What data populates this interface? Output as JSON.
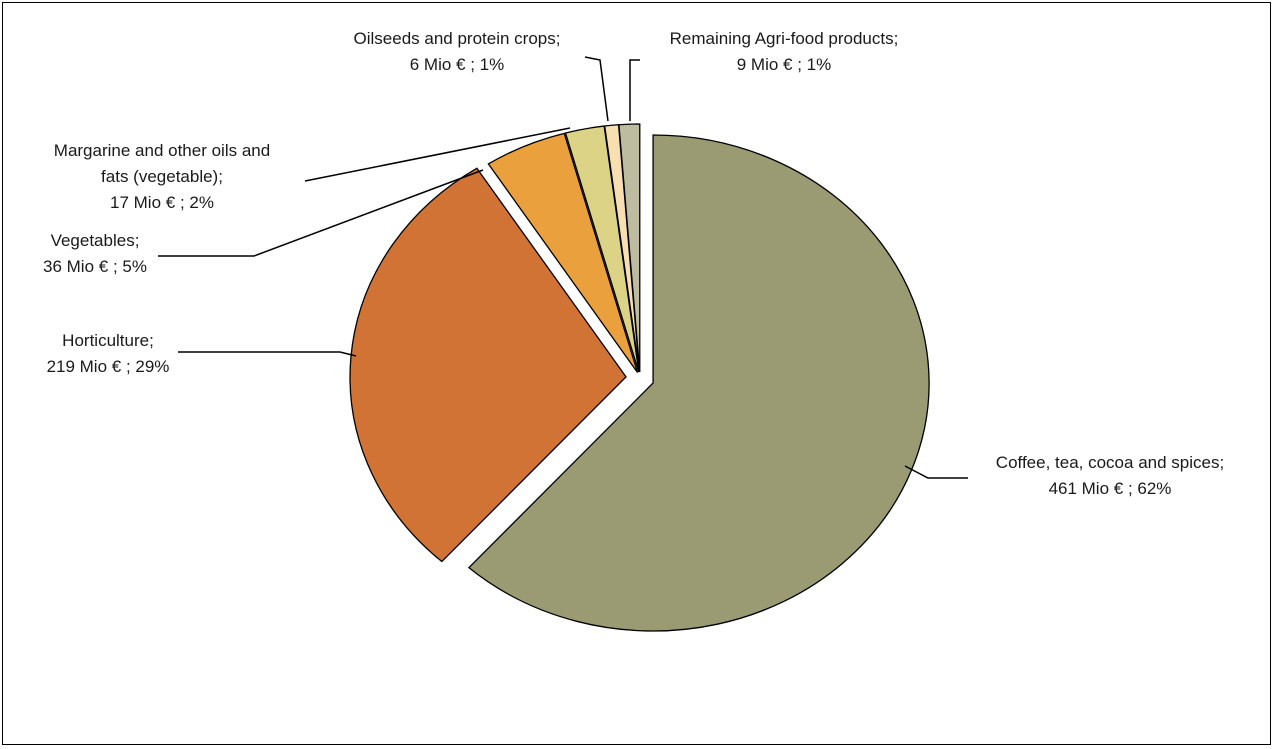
{
  "chart_data": {
    "type": "pie",
    "title": "",
    "unit": "Mio €",
    "slices": [
      {
        "name": "Coffee, tea, cocoa and spices",
        "value": 461,
        "percent": "62%",
        "color": "#9a9b72",
        "label_lines": [
          "Coffee, tea, cocoa and spices;",
          "461 Mio € ; 62%"
        ]
      },
      {
        "name": "Horticulture",
        "value": 219,
        "percent": "29%",
        "color": "#d17335",
        "label_lines": [
          "Horticulture;",
          "219 Mio € ; 29%"
        ]
      },
      {
        "name": "Vegetables",
        "value": 36,
        "percent": "5%",
        "color": "#e9a03d",
        "label_lines": [
          "Vegetables;",
          "36 Mio € ; 5%"
        ]
      },
      {
        "name": "Margarine and other oils and fats (vegetable)",
        "value": 17,
        "percent": "2%",
        "color": "#dcd387",
        "label_lines": [
          "Margarine and other oils and",
          "fats (vegetable);",
          "17 Mio € ; 2%"
        ]
      },
      {
        "name": "Oilseeds and protein crops",
        "value": 6,
        "percent": "1%",
        "color": "#f8dfb2",
        "label_lines": [
          "Oilseeds and protein crops;",
          "6 Mio € ; 1%"
        ]
      },
      {
        "name": "Remaining Agri-food products",
        "value": 9,
        "percent": "1%",
        "color": "#bdbca0",
        "label_lines": [
          "Remaining Agri-food products;",
          "9 Mio € ; 1%"
        ]
      }
    ],
    "legend": "none"
  }
}
